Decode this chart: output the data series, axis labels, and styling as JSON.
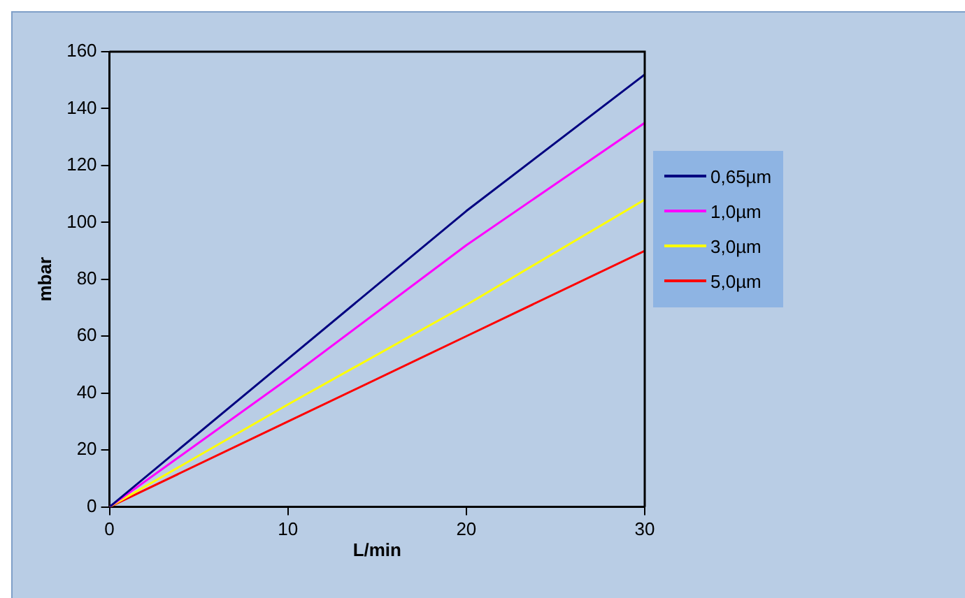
{
  "chart_data": {
    "type": "line",
    "xlabel": "L/min",
    "ylabel": "mbar",
    "x": [
      0,
      10,
      20,
      30
    ],
    "xlim": [
      0,
      30
    ],
    "xticks": [
      0,
      10,
      20,
      30
    ],
    "ylim": [
      0,
      160
    ],
    "yticks": [
      0,
      20,
      40,
      60,
      80,
      100,
      120,
      140,
      160
    ],
    "grid": false,
    "legend": "right",
    "marker": "none",
    "line_style": "solid",
    "series": [
      {
        "name": "0,65µm",
        "color": "#000080",
        "values": [
          0,
          52,
          104,
          152
        ]
      },
      {
        "name": "1,0µm",
        "color": "#ff00ff",
        "values": [
          0,
          45,
          92,
          135
        ]
      },
      {
        "name": "3,0µm",
        "color": "#ffff00",
        "values": [
          0,
          36,
          71,
          108
        ]
      },
      {
        "name": "5,0µm",
        "color": "#ff0000",
        "values": [
          0,
          30,
          60,
          90
        ]
      }
    ]
  }
}
